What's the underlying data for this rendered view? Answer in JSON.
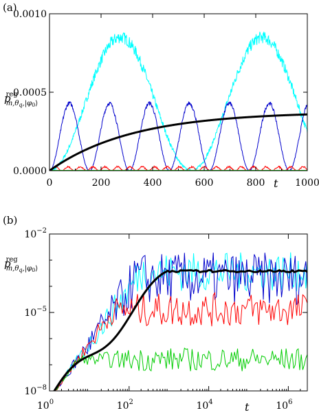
{
  "chart_data": [
    {
      "type": "line",
      "panel_label": "(a)",
      "xlabel": "t",
      "ylabel": {
        "base": "p",
        "sup": "reg",
        "sub": "m,θ",
        "subsub": "q",
        "ket": ",|φ",
        "ketsub": "0",
        "ketend": "⟩"
      },
      "xlim": [
        0,
        1000
      ],
      "ylim": [
        0,
        0.001
      ],
      "x_ticks": [
        0,
        200,
        400,
        600,
        800,
        1000
      ],
      "x_tick_labels": [
        "0",
        "200",
        "400",
        "600",
        "800",
        "1000"
      ],
      "y_ticks": [
        0,
        0.0005,
        0.001
      ],
      "y_tick_labels": [
        "0.0000",
        "0.0005",
        "0.0010"
      ],
      "grid": false,
      "series": [
        {
          "color": "#00ffff",
          "kind": "sin2",
          "amp": 0.00085,
          "period": 550,
          "noise": 3e-05
        },
        {
          "color": "#0000cc",
          "kind": "sin2",
          "amp": 0.00043,
          "period": 155,
          "noise": 1e-05
        },
        {
          "color": "#ff0000",
          "kind": "sin2",
          "amp": 2.5e-05,
          "period": 48,
          "noise": 4e-06
        },
        {
          "color": "#00cc00",
          "kind": "const",
          "amp": 2e-06
        },
        {
          "color": "#000000",
          "kind": "saturate",
          "amp": 0.000375,
          "tau": 320,
          "width": 3
        }
      ]
    },
    {
      "type": "line",
      "panel_label": "(b)",
      "xlabel": "t",
      "ylabel": {
        "base": "p",
        "sup": "reg",
        "sub": "m,θ",
        "subsub": "q",
        "ket": ",|φ",
        "ketsub": "0",
        "ketend": "⟩"
      },
      "x_scale": "log",
      "y_scale": "log",
      "xlim": [
        1,
        3000000
      ],
      "ylim": [
        1e-08,
        0.01
      ],
      "x_ticks": [
        1,
        100,
        10000,
        1000000
      ],
      "x_tick_labels": [
        {
          "base": "10",
          "exp": "0"
        },
        {
          "base": "10",
          "exp": "2"
        },
        {
          "base": "10",
          "exp": "4"
        },
        {
          "base": "10",
          "exp": "6"
        }
      ],
      "y_ticks": [
        1e-08,
        1e-05,
        0.01
      ],
      "y_tick_labels": [
        {
          "base": "10",
          "exp": "−8"
        },
        {
          "base": "10",
          "exp": "−5"
        },
        {
          "base": "10",
          "exp": "−2"
        }
      ],
      "grid": false,
      "series": [
        {
          "color": "#00ffff",
          "plateau": -3.45,
          "spread": 0.75
        },
        {
          "color": "#0000cc",
          "plateau": -3.7,
          "spread": 1.0
        },
        {
          "color": "#ff0000",
          "plateau": -4.9,
          "spread": 0.65
        },
        {
          "color": "#00cc00",
          "plateau": -6.8,
          "spread": 0.45
        },
        {
          "color": "#000000",
          "plateau": -3.42,
          "spread": 0.04,
          "width": 3
        }
      ]
    }
  ]
}
